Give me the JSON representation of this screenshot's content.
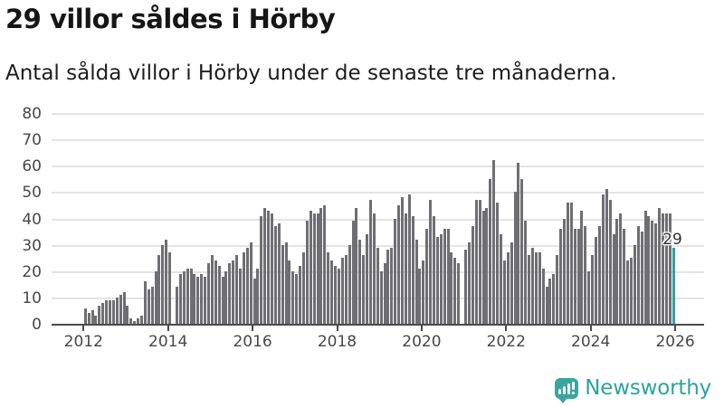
{
  "title": "29 villor såldes i Hörby",
  "subtitle": "Antal sålda villor i Hörby under de senaste tre månaderna.",
  "annotation": {
    "last_value_label": "29"
  },
  "branding": {
    "name": "Newsworthy",
    "icon": "newsworthy-speech-bubble-chart-icon"
  },
  "colors": {
    "bar": "#6f6f73",
    "highlight": "#2aa49b",
    "brand": "#3aa69e",
    "brand_text": "#2ba49b",
    "grid": "#e4e4e4",
    "axis": "#4b4b4b",
    "tick_label": "#474747",
    "title_text": "#161616"
  },
  "chart_data": {
    "type": "bar",
    "title": "29 villor såldes i Hörby",
    "subtitle": "Antal sålda villor i Hörby under de senaste tre månaderna.",
    "granularity": "monthly",
    "x_start": "2012-01",
    "x_end": "2025-12",
    "xlabel": "",
    "ylabel": "",
    "ylim": [
      0,
      80
    ],
    "yticks": [
      0,
      10,
      20,
      30,
      40,
      50,
      60,
      70,
      80
    ],
    "xticks": [
      "2012",
      "2014",
      "2016",
      "2018",
      "2020",
      "2022",
      "2024",
      "2026"
    ],
    "grid": "horizontal",
    "legend": "none",
    "highlight_last": true,
    "last_value": 29,
    "values": [
      6,
      4,
      5,
      3,
      7,
      8,
      9,
      9,
      9,
      10,
      11,
      12,
      7,
      2,
      1,
      2,
      3,
      16,
      13,
      14,
      20,
      26,
      30,
      32,
      27,
      0,
      14,
      19,
      20,
      21,
      21,
      19,
      18,
      19,
      18,
      23,
      26,
      24,
      22,
      18,
      20,
      23,
      24,
      26,
      21,
      27,
      29,
      31,
      17,
      21,
      41,
      44,
      43,
      42,
      37,
      38,
      30,
      31,
      24,
      20,
      19,
      22,
      27,
      39,
      43,
      42,
      42,
      44,
      45,
      27,
      24,
      22,
      21,
      25,
      26,
      30,
      39,
      44,
      32,
      26,
      34,
      47,
      42,
      29,
      20,
      23,
      28,
      29,
      40,
      45,
      48,
      42,
      49,
      41,
      32,
      21,
      24,
      36,
      47,
      41,
      33,
      34,
      36,
      36,
      27,
      25,
      23,
      0,
      28,
      31,
      37,
      47,
      47,
      43,
      44,
      55,
      62,
      46,
      34,
      24,
      27,
      31,
      50,
      61,
      55,
      39,
      26,
      29,
      27,
      27,
      21,
      14,
      17,
      19,
      26,
      36,
      40,
      46,
      46,
      36,
      36,
      43,
      37,
      20,
      26,
      33,
      37,
      49,
      51,
      47,
      34,
      40,
      42,
      36,
      24,
      25,
      30,
      37,
      35,
      43,
      41,
      39,
      38,
      44,
      42,
      42,
      42,
      29
    ]
  }
}
